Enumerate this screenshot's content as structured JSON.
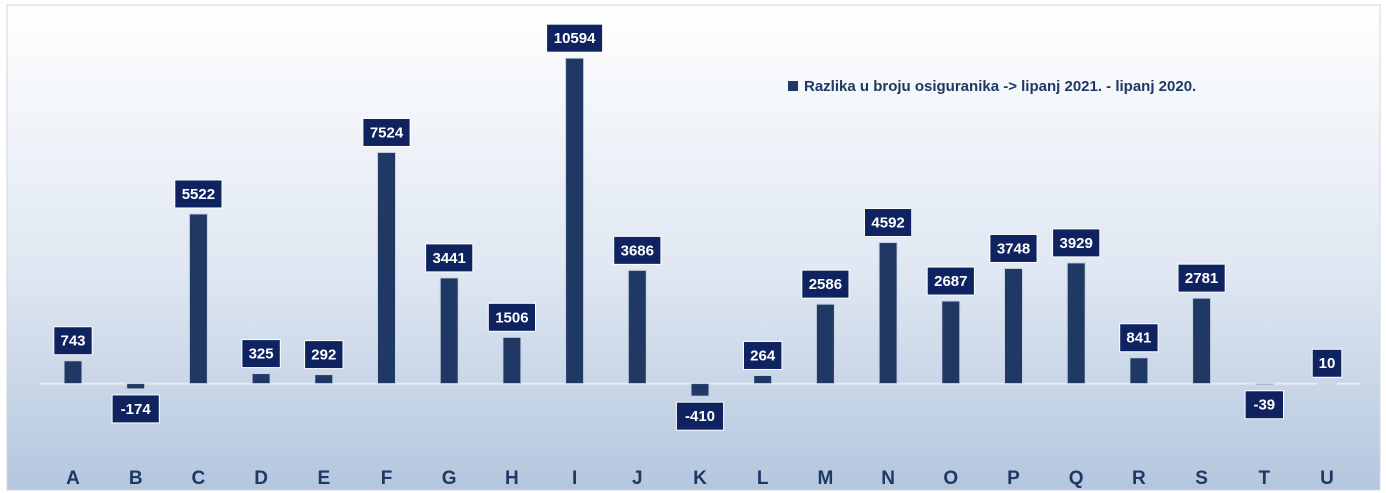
{
  "chart_data": {
    "type": "bar",
    "categories": [
      "A",
      "B",
      "C",
      "D",
      "E",
      "F",
      "G",
      "H",
      "I",
      "J",
      "K",
      "L",
      "M",
      "N",
      "O",
      "P",
      "Q",
      "R",
      "S",
      "T",
      "U"
    ],
    "series": [
      {
        "name": "Razlika u broju osiguranika -> lipanj 2021. - lipanj 2020.",
        "color": "#1f3864",
        "values": [
          743,
          -174,
          5522,
          325,
          292,
          7524,
          3441,
          1506,
          10594,
          3686,
          -410,
          264,
          2586,
          4592,
          2687,
          3748,
          3929,
          841,
          2781,
          -39,
          10
        ]
      }
    ],
    "ylim": [
      -2000,
      12000
    ],
    "legend": "top-right"
  }
}
